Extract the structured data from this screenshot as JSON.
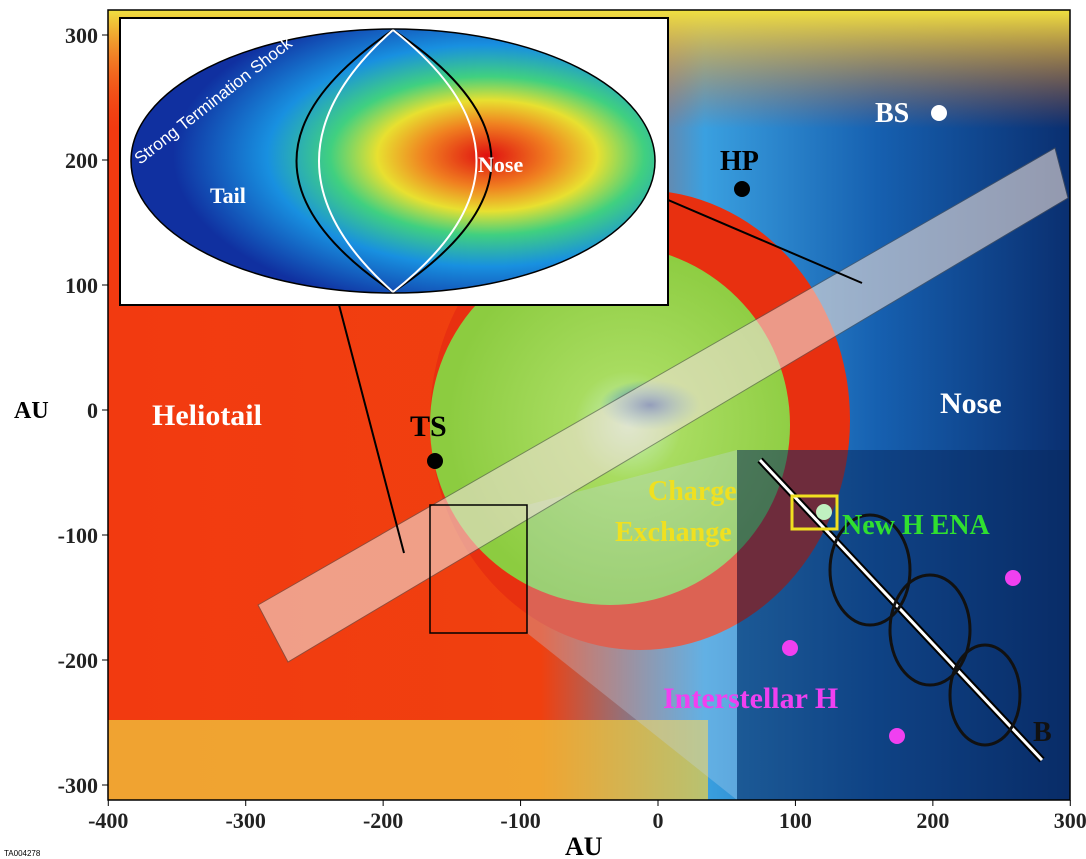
{
  "x_axis": {
    "label": "AU",
    "ticks": [
      -400,
      -300,
      -200,
      -100,
      0,
      100,
      200,
      300
    ]
  },
  "y_axis": {
    "label": "AU",
    "ticks": [
      300,
      200,
      100,
      0,
      -100,
      -200,
      -300
    ]
  },
  "labels": {
    "heliotail": "Heliotail",
    "ts": "TS",
    "hp": "HP",
    "bs": "BS",
    "nose": "Nose",
    "charge_exchange": [
      "Charge",
      "Exchange"
    ],
    "new_h_ena": "New H ENA",
    "interstellar_h": "Interstellar H",
    "b": "B"
  },
  "inset": {
    "title": "Strong Termination Shock",
    "nose": "Nose",
    "tail": "Tail"
  },
  "figure_id": "TA004278"
}
